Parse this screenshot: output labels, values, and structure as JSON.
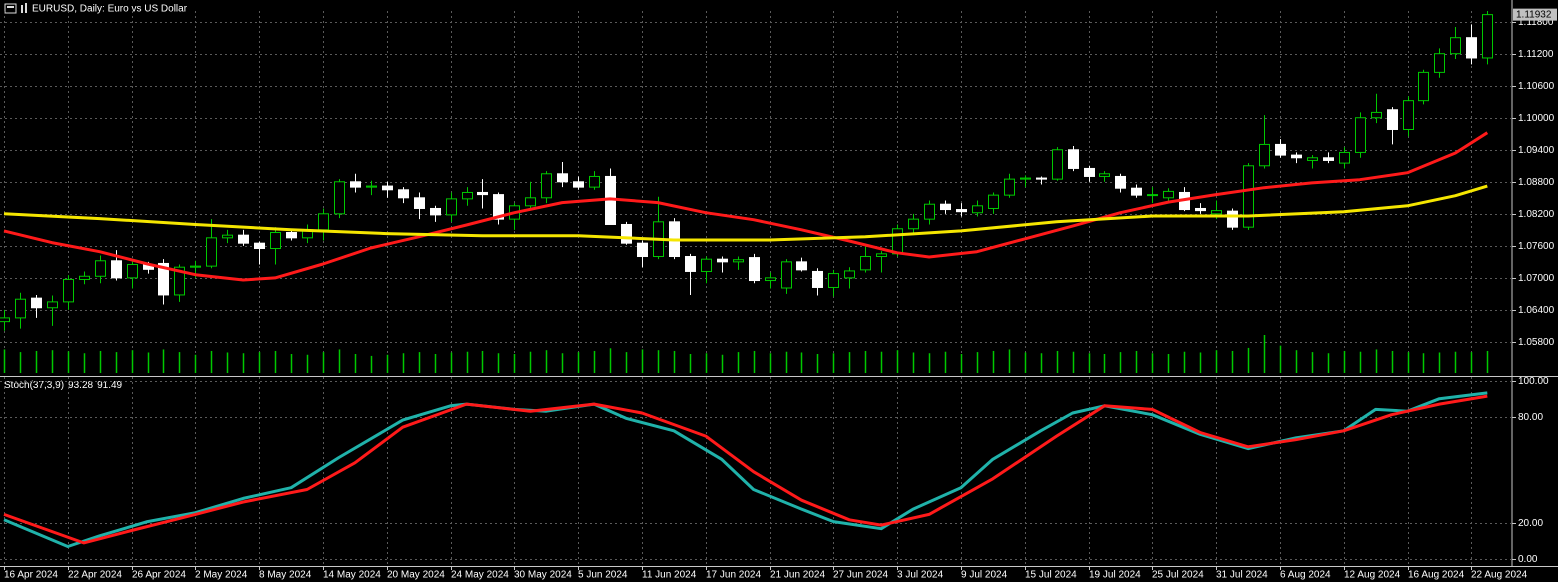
{
  "chart_data": [
    {
      "type": "candlestick",
      "title": "EURUSD, Daily:  Euro vs US Dollar",
      "up_color": "#00c800",
      "down_color": "#ffffff",
      "volume_color": "#00c800",
      "grid": true,
      "xlim": [
        -0.25,
        94.55
      ],
      "ylim": [
        1.0518,
        1.12
      ],
      "yticks": [
        {
          "value": 1.118,
          "label": "1.11800"
        },
        {
          "value": 1.112,
          "label": "1.11200"
        },
        {
          "value": 1.106,
          "label": "1.10600"
        },
        {
          "value": 1.1,
          "label": "1.10000"
        },
        {
          "value": 1.094,
          "label": "1.09400"
        },
        {
          "value": 1.088,
          "label": "1.08800"
        },
        {
          "value": 1.082,
          "label": "1.08200"
        },
        {
          "value": 1.076,
          "label": "1.07600"
        },
        {
          "value": 1.07,
          "label": "1.07000"
        },
        {
          "value": 1.064,
          "label": "1.06400"
        },
        {
          "value": 1.058,
          "label": "1.05800"
        }
      ],
      "xticks": [
        {
          "value": 0,
          "label": "16 Apr 2024"
        },
        {
          "value": 4,
          "label": "22 Apr 2024"
        },
        {
          "value": 8,
          "label": "26 Apr 2024"
        },
        {
          "value": 12,
          "label": "2 May 2024"
        },
        {
          "value": 16,
          "label": "8 May 2024"
        },
        {
          "value": 20,
          "label": "14 May 2024"
        },
        {
          "value": 24,
          "label": "20 May 2024"
        },
        {
          "value": 28,
          "label": "24 May 2024"
        },
        {
          "value": 32,
          "label": "30 May 2024"
        },
        {
          "value": 36,
          "label": "5 Jun 2024"
        },
        {
          "value": 40,
          "label": "11 Jun 2024"
        },
        {
          "value": 44,
          "label": "17 Jun 2024"
        },
        {
          "value": 48,
          "label": "21 Jun 2024"
        },
        {
          "value": 52,
          "label": "27 Jun 2024"
        },
        {
          "value": 56,
          "label": "3 Jul 2024"
        },
        {
          "value": 60,
          "label": "9 Jul 2024"
        },
        {
          "value": 64,
          "label": "15 Jul 2024"
        },
        {
          "value": 68,
          "label": "19 Jul 2024"
        },
        {
          "value": 72,
          "label": "25 Jul 2024"
        },
        {
          "value": 76,
          "label": "31 Jul 2024"
        },
        {
          "value": 80,
          "label": "6 Aug 2024"
        },
        {
          "value": 84,
          "label": "12 Aug 2024"
        },
        {
          "value": 88,
          "label": "16 Aug 2024"
        },
        {
          "value": 92,
          "label": "22 Aug 2024"
        }
      ],
      "open": [
        1.0618,
        1.0625,
        1.0662,
        1.0644,
        1.0655,
        1.0697,
        1.0703,
        1.0732,
        1.07,
        1.0725,
        1.0727,
        1.0668,
        1.072,
        1.0722,
        1.0775,
        1.078,
        1.0765,
        1.0755,
        1.0785,
        1.0775,
        1.079,
        1.082,
        1.088,
        1.087,
        1.0872,
        1.0865,
        1.085,
        1.083,
        1.0818,
        1.0848,
        1.086,
        1.0856,
        1.081,
        1.0835,
        1.085,
        1.0895,
        1.088,
        1.087,
        1.089,
        1.08,
        1.0765,
        1.074,
        1.0805,
        1.074,
        1.0712,
        1.0735,
        1.073,
        1.0738,
        1.0695,
        1.0681,
        1.073,
        1.0712,
        1.0682,
        1.07,
        1.0715,
        1.074,
        1.0745,
        1.0792,
        1.081,
        1.0838,
        1.0828,
        1.0822,
        1.083,
        1.0855,
        1.0885,
        1.0887,
        1.0885,
        1.094,
        1.0905,
        1.089,
        1.089,
        1.0868,
        1.0855,
        1.085,
        1.086,
        1.083,
        1.082,
        1.0825,
        1.0795,
        1.091,
        1.095,
        1.093,
        1.092,
        1.0925,
        1.0915,
        1.0935,
        1.1,
        1.1015,
        1.0978,
        1.1032,
        1.1085,
        1.112,
        1.115,
        1.1112
      ],
      "high": [
        1.064,
        1.0672,
        1.0668,
        1.0667,
        1.0705,
        1.0712,
        1.0742,
        1.0752,
        1.0732,
        1.073,
        1.0735,
        1.0725,
        1.0732,
        1.081,
        1.079,
        1.079,
        1.0768,
        1.0795,
        1.0788,
        1.08,
        1.083,
        1.0885,
        1.0895,
        1.0882,
        1.088,
        1.087,
        1.086,
        1.0835,
        1.086,
        1.087,
        1.0885,
        1.086,
        1.084,
        1.088,
        1.09,
        1.0917,
        1.089,
        1.09,
        1.0905,
        1.0805,
        1.077,
        1.0852,
        1.0812,
        1.0745,
        1.074,
        1.074,
        1.074,
        1.0745,
        1.071,
        1.0735,
        1.0738,
        1.0718,
        1.0715,
        1.072,
        1.076,
        1.075,
        1.08,
        1.082,
        1.0845,
        1.0845,
        1.084,
        1.0845,
        1.086,
        1.0895,
        1.0892,
        1.089,
        1.0945,
        1.0947,
        1.091,
        1.09,
        1.0895,
        1.0875,
        1.087,
        1.0868,
        1.087,
        1.084,
        1.0845,
        1.083,
        1.0915,
        1.1005,
        1.096,
        1.0935,
        1.093,
        1.0935,
        1.0945,
        1.101,
        1.1045,
        1.102,
        1.104,
        1.109,
        1.113,
        1.117,
        1.1175,
        1.12
      ],
      "low": [
        1.0601,
        1.0605,
        1.0625,
        1.061,
        1.064,
        1.0688,
        1.069,
        1.0695,
        1.068,
        1.0708,
        1.065,
        1.0655,
        1.07,
        1.0718,
        1.0765,
        1.076,
        1.0725,
        1.0725,
        1.077,
        1.0765,
        1.077,
        1.0812,
        1.086,
        1.0855,
        1.085,
        1.084,
        1.081,
        1.0805,
        1.0805,
        1.0835,
        1.083,
        1.08,
        1.079,
        1.083,
        1.084,
        1.087,
        1.0865,
        1.0865,
        1.08,
        1.0762,
        1.072,
        1.0735,
        1.0735,
        1.0668,
        1.069,
        1.071,
        1.0715,
        1.069,
        1.068,
        1.067,
        1.0712,
        1.0667,
        1.0665,
        1.068,
        1.071,
        1.071,
        1.074,
        1.078,
        1.08,
        1.082,
        1.0815,
        1.0815,
        1.082,
        1.085,
        1.087,
        1.0875,
        1.0882,
        1.09,
        1.088,
        1.088,
        1.086,
        1.085,
        1.084,
        1.084,
        1.0825,
        1.082,
        1.081,
        1.079,
        1.079,
        1.0905,
        1.0925,
        1.0915,
        1.0905,
        1.0915,
        1.0905,
        1.0925,
        1.099,
        1.095,
        1.0965,
        1.1025,
        1.1075,
        1.111,
        1.11,
        1.11
      ],
      "close": [
        1.0625,
        1.066,
        1.0644,
        1.0655,
        1.0697,
        1.0703,
        1.0732,
        1.07,
        1.0725,
        1.0716,
        1.0668,
        1.072,
        1.0722,
        1.0775,
        1.078,
        1.0765,
        1.0755,
        1.0785,
        1.0775,
        1.079,
        1.082,
        1.088,
        1.087,
        1.0872,
        1.0865,
        1.085,
        1.083,
        1.0818,
        1.0848,
        1.086,
        1.0856,
        1.081,
        1.0835,
        1.085,
        1.0895,
        1.088,
        1.087,
        1.089,
        1.08,
        1.0765,
        1.074,
        1.0805,
        1.074,
        1.0712,
        1.0735,
        1.073,
        1.0734,
        1.0695,
        1.07,
        1.073,
        1.0715,
        1.0682,
        1.0708,
        1.0713,
        1.074,
        1.0745,
        1.0792,
        1.081,
        1.0838,
        1.0828,
        1.0824,
        1.0835,
        1.0855,
        1.0885,
        1.0887,
        1.0885,
        1.094,
        1.0905,
        1.089,
        1.0895,
        1.0868,
        1.0855,
        1.0856,
        1.0862,
        1.0828,
        1.0826,
        1.0826,
        1.0795,
        1.091,
        1.095,
        1.093,
        1.0925,
        1.0925,
        1.092,
        1.0935,
        1.1,
        1.101,
        1.0978,
        1.1032,
        1.1085,
        1.112,
        1.115,
        1.1112,
        1.11932
      ],
      "volume": [
        62,
        55,
        58,
        60,
        57,
        52,
        58,
        55,
        60,
        54,
        62,
        55,
        48,
        58,
        54,
        52,
        55,
        58,
        50,
        48,
        55,
        62,
        50,
        45,
        48,
        52,
        55,
        50,
        54,
        56,
        58,
        52,
        50,
        56,
        60,
        52,
        55,
        58,
        65,
        55,
        62,
        60,
        58,
        50,
        52,
        48,
        55,
        58,
        52,
        56,
        54,
        50,
        52,
        55,
        58,
        56,
        60,
        54,
        52,
        56,
        50,
        55,
        58,
        62,
        54,
        52,
        58,
        56,
        52,
        50,
        55,
        58,
        52,
        50,
        56,
        54,
        60,
        58,
        66,
        100,
        72,
        60,
        55,
        52,
        58,
        56,
        62,
        58,
        55,
        52,
        54,
        56,
        55,
        58
      ],
      "series": [
        {
          "color": "#ff1a1a",
          "x": [
            0,
            3,
            6,
            9,
            12,
            15,
            17,
            20,
            23,
            26,
            29,
            32,
            35,
            38,
            41,
            44,
            47,
            50,
            53,
            56,
            58,
            61,
            64,
            67,
            70,
            73,
            76,
            79,
            82,
            85,
            88,
            91,
            93
          ],
          "values": [
            1.0788,
            1.0766,
            1.0749,
            1.0726,
            1.0706,
            1.0696,
            1.07,
            1.0726,
            1.0756,
            1.0777,
            1.0799,
            1.0822,
            1.0841,
            1.0848,
            1.0841,
            1.0822,
            1.0809,
            1.079,
            1.0769,
            1.0747,
            1.0739,
            1.0749,
            1.0773,
            1.0797,
            1.0822,
            1.0842,
            1.0856,
            1.0869,
            1.0878,
            1.0884,
            1.0897,
            1.0934,
            1.0972
          ]
        },
        {
          "color": "#f5e600",
          "x": [
            0,
            6,
            12,
            18,
            24,
            30,
            36,
            42,
            48,
            54,
            60,
            66,
            72,
            78,
            84,
            88,
            91,
            93
          ],
          "values": [
            1.082,
            1.0811,
            1.08,
            1.079,
            1.0783,
            1.0779,
            1.0779,
            1.0771,
            1.0771,
            1.0777,
            1.0788,
            1.0805,
            1.0816,
            1.0816,
            1.0824,
            1.0835,
            1.0854,
            1.0872
          ]
        }
      ]
    },
    {
      "type": "line",
      "title": "Stoch(37,3,9)",
      "ylim": [
        -3.4,
        102.2
      ],
      "grid": true,
      "yticks": [
        {
          "value": 100,
          "label": "100.00"
        },
        {
          "value": 80,
          "label": "80.00"
        },
        {
          "value": 20,
          "label": "20.00"
        },
        {
          "value": 0,
          "label": "0.00"
        }
      ],
      "series": [
        {
          "color": "#20b2aa",
          "x": [
            0,
            4,
            6,
            9,
            12,
            15,
            18,
            21,
            25,
            28,
            29,
            32,
            34,
            37,
            39,
            42,
            45,
            47,
            50,
            52,
            55,
            57,
            60,
            62,
            65,
            67,
            69,
            72,
            75,
            78,
            81,
            84,
            86,
            88,
            90,
            93
          ],
          "values": [
            22,
            7,
            13,
            21,
            26,
            34,
            40,
            57,
            78,
            86,
            87,
            84,
            83,
            87,
            79,
            72,
            56,
            39,
            28,
            21,
            17,
            28,
            40,
            56,
            72,
            82,
            86,
            81,
            70,
            62,
            68,
            72,
            84,
            83,
            90,
            93.28
          ]
        },
        {
          "color": "#ff1a1a",
          "x": [
            0,
            5,
            8,
            12,
            15,
            19,
            22,
            25,
            29,
            33,
            37,
            40,
            44,
            47,
            50,
            53,
            55,
            58,
            62,
            66,
            69,
            72,
            75,
            78,
            81,
            84,
            87,
            90,
            93
          ],
          "values": [
            25,
            9,
            16,
            25,
            32,
            39,
            54,
            74,
            87,
            83,
            87,
            82,
            69,
            49,
            33,
            22,
            19,
            25,
            45,
            69,
            86,
            84,
            71,
            63,
            67,
            72,
            81,
            87,
            91.49
          ]
        }
      ]
    }
  ]
}
